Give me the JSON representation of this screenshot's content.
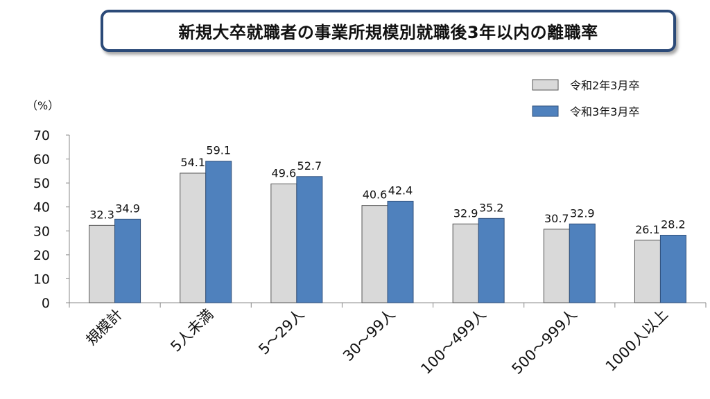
{
  "chart_data": {
    "type": "bar",
    "title": "新規大卒就職者の事業所規模別就職後3年以内の離職率",
    "ylabel": "（%）",
    "xlabel": "",
    "ylim": [
      0,
      70
    ],
    "yticks": [
      0,
      10,
      20,
      30,
      40,
      50,
      60,
      70
    ],
    "categories": [
      "規模計",
      "5人未満",
      "5～29人",
      "30～99人",
      "100～499人",
      "500～999人",
      "1000人以上"
    ],
    "series": [
      {
        "name": "令和2年3月卒",
        "color": "#d9d9d9",
        "stroke": "#555555",
        "values": [
          32.3,
          54.1,
          49.6,
          40.6,
          32.9,
          30.7,
          26.1
        ]
      },
      {
        "name": "令和3年3月卒",
        "color": "#4f81bd",
        "stroke": "#2f4f7a",
        "values": [
          34.9,
          59.1,
          52.7,
          42.4,
          35.2,
          32.9,
          28.2
        ]
      }
    ],
    "legend": "top-right",
    "grid": false
  }
}
